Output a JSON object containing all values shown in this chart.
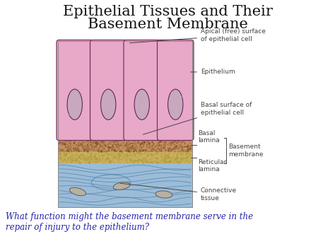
{
  "title_line1": "Epithelial Tissues and Their",
  "title_line2": "Basement Membrane",
  "title_fontsize": 15,
  "title_color": "#111111",
  "bg_color": "#e8e4dc",
  "footer_text": "What function might the basement membrane serve in the\nrepair of injury to the epithelium?",
  "footer_color": "#2222aa",
  "footer_fontsize": 8.5,
  "diagram": {
    "epithelium_color": "#e8a8c8",
    "epithelium_border": "#7a3060",
    "nucleus_fill": "#c8a8bc",
    "nucleus_border": "#5a2050",
    "basal_lamina_color": "#b07030",
    "reticular_lamina_color": "#c8b060",
    "connective_color": "#9bbcd8",
    "connective_line_color": "#5080a8",
    "annotation_color": "#444444",
    "annotation_fontsize": 6.5
  }
}
